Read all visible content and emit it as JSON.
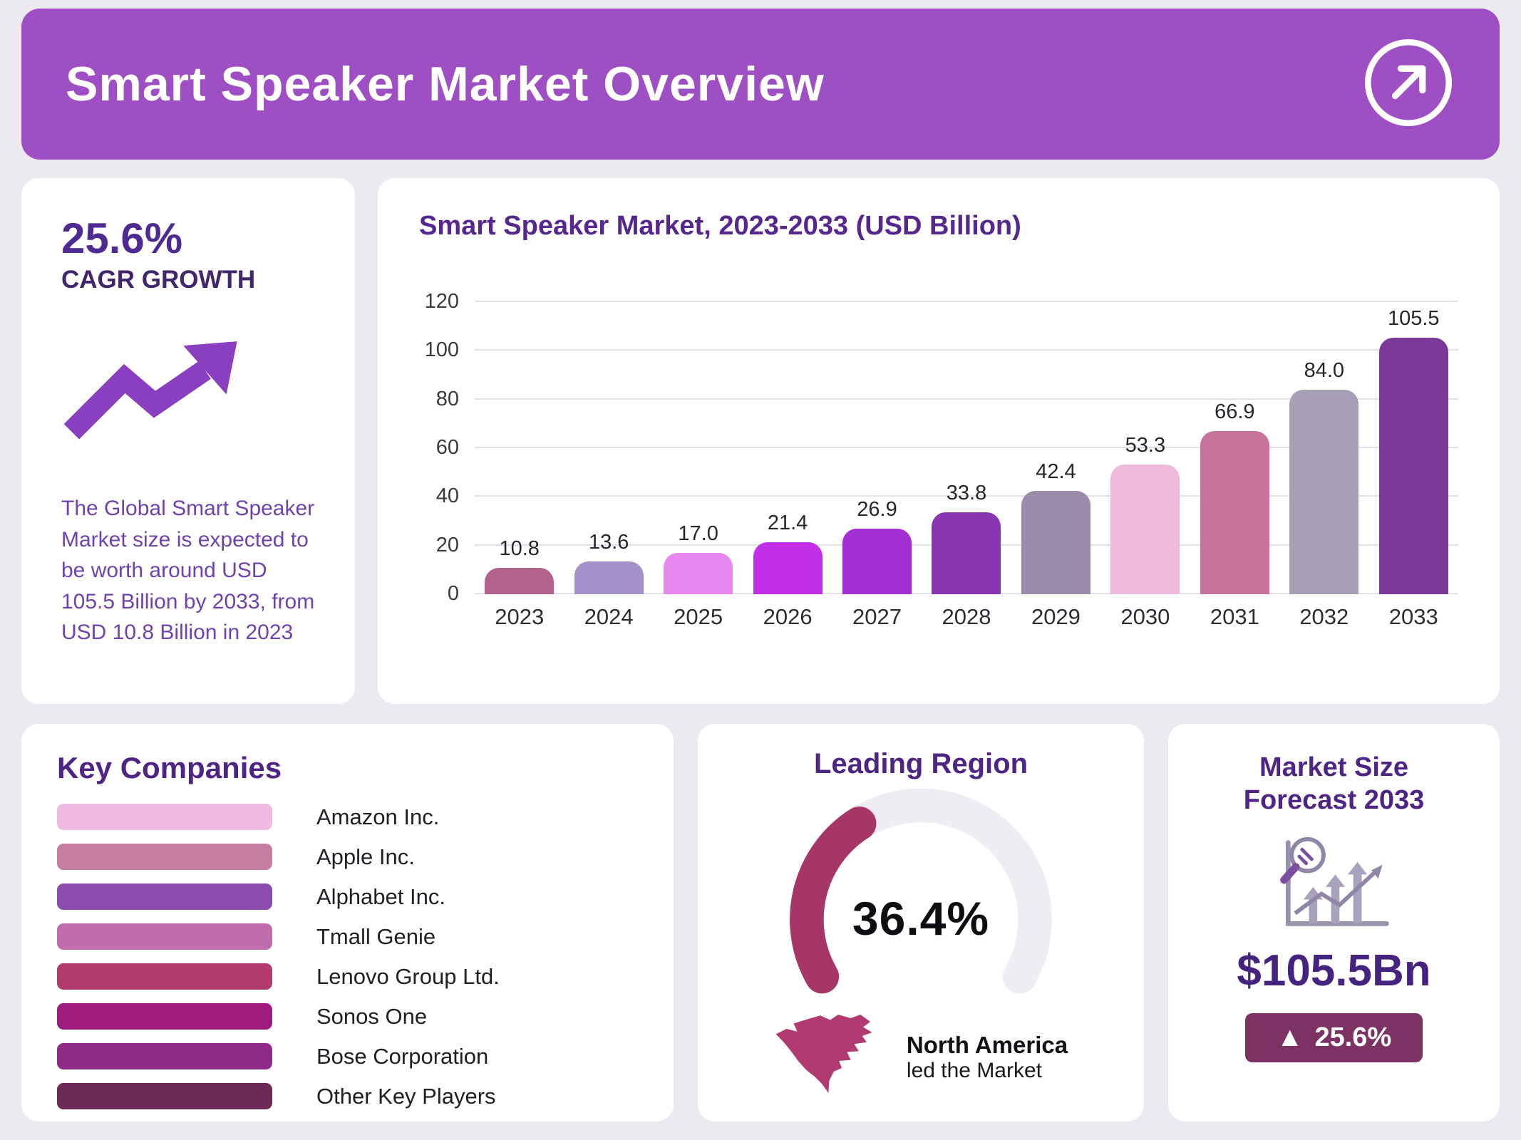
{
  "header": {
    "title": "Smart Speaker Market Overview",
    "accent_color": "#9e4fc3"
  },
  "cagr_card": {
    "value": "25.6%",
    "label": "CAGR GROWTH",
    "icon_color": "#8a3fc0",
    "description": "The Global Smart Speaker Market size is expected to be worth around USD 105.5 Billion by 2033, from USD 10.8 Billion in 2023"
  },
  "chart_card": {
    "title": "Smart Speaker Market, 2023-2033 (USD Billion)"
  },
  "chart_data": {
    "type": "bar",
    "title": "Smart Speaker Market, 2023-2033 (USD Billion)",
    "categories": [
      "2023",
      "2024",
      "2025",
      "2026",
      "2027",
      "2028",
      "2029",
      "2030",
      "2031",
      "2032",
      "2033"
    ],
    "values": [
      10.8,
      13.6,
      17.0,
      21.4,
      26.9,
      33.8,
      42.4,
      53.3,
      66.9,
      84.0,
      105.5
    ],
    "bar_colors": [
      "#b2628f",
      "#a591c9",
      "#e786ef",
      "#c32fe8",
      "#a32ed6",
      "#8836b2",
      "#9c8cab",
      "#eebade",
      "#c7739b",
      "#a79fb6",
      "#7b3a99"
    ],
    "xlabel": "",
    "ylabel": "",
    "ylim": [
      0,
      120
    ],
    "yticks": [
      0,
      20,
      40,
      60,
      80,
      100,
      120
    ],
    "grid": true,
    "legend": "none",
    "value_labels": true
  },
  "companies_card": {
    "title": "Key Companies",
    "items": [
      {
        "name": "Amazon Inc.",
        "color": "#efbae2"
      },
      {
        "name": "Apple Inc.",
        "color": "#c77da2"
      },
      {
        "name": "Alphabet Inc.",
        "color": "#8c4bae"
      },
      {
        "name": "Tmall Genie",
        "color": "#c16cac"
      },
      {
        "name": "Lenovo Group Ltd.",
        "color": "#b23a6e"
      },
      {
        "name": "Sonos One",
        "color": "#9e1c7d"
      },
      {
        "name": "Bose Corporation",
        "color": "#8f2a87"
      },
      {
        "name": "Other Key Players",
        "color": "#6d2a57"
      }
    ]
  },
  "region_card": {
    "title": "Leading Region",
    "share": "36.4%",
    "share_value": 36.4,
    "gauge_color": "#a63568",
    "track_color": "#efedf3",
    "region": "North America",
    "caption": "led the Market",
    "map_color": "#b23a72"
  },
  "forecast_card": {
    "title": "Market Size Forecast 2033",
    "value": "$105.5Bn",
    "badge_icon": "▲",
    "badge": "25.6%",
    "badge_color": "#7c3263"
  }
}
